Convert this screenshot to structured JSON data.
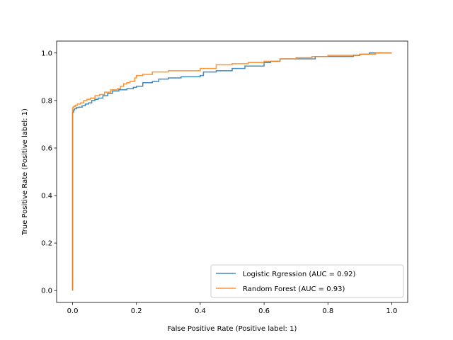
{
  "chart_data": {
    "type": "line",
    "title": "",
    "xlabel": "False Positive Rate (Positive label: 1)",
    "ylabel": "True Positive Rate (Positive label: 1)",
    "xlim": [
      -0.05,
      1.05
    ],
    "ylim": [
      -0.05,
      1.05
    ],
    "xticks": [
      0.0,
      0.2,
      0.4,
      0.6,
      0.8,
      1.0
    ],
    "yticks": [
      0.0,
      0.2,
      0.4,
      0.6,
      0.8,
      1.0
    ],
    "xtick_labels": [
      "0.0",
      "0.2",
      "0.4",
      "0.6",
      "0.8",
      "1.0"
    ],
    "ytick_labels": [
      "0.0",
      "0.2",
      "0.4",
      "0.6",
      "0.8",
      "1.0"
    ],
    "grid": false,
    "legend_position": "lower-right",
    "series": [
      {
        "name": "Logistic Rgression (AUC = 0.92)",
        "color": "#1f77b4",
        "step": true,
        "x": [
          0.0,
          0.0,
          0.003,
          0.003,
          0.006,
          0.006,
          0.012,
          0.012,
          0.02,
          0.02,
          0.03,
          0.03,
          0.04,
          0.04,
          0.05,
          0.05,
          0.06,
          0.06,
          0.07,
          0.07,
          0.08,
          0.08,
          0.095,
          0.095,
          0.11,
          0.11,
          0.125,
          0.125,
          0.145,
          0.145,
          0.17,
          0.17,
          0.19,
          0.19,
          0.2,
          0.2,
          0.22,
          0.22,
          0.25,
          0.25,
          0.27,
          0.27,
          0.3,
          0.3,
          0.34,
          0.34,
          0.4,
          0.4,
          0.41,
          0.41,
          0.45,
          0.45,
          0.5,
          0.5,
          0.54,
          0.54,
          0.6,
          0.6,
          0.62,
          0.62,
          0.65,
          0.65,
          0.73,
          0.73,
          0.76,
          0.76,
          0.8,
          0.8,
          0.85,
          0.85,
          0.88,
          0.88,
          0.9,
          0.9,
          0.93,
          0.93,
          0.97,
          0.97,
          1.0
        ],
        "y": [
          0.0,
          0.75,
          0.75,
          0.76,
          0.76,
          0.765,
          0.765,
          0.77,
          0.77,
          0.772,
          0.772,
          0.778,
          0.778,
          0.785,
          0.785,
          0.79,
          0.79,
          0.8,
          0.8,
          0.805,
          0.805,
          0.81,
          0.81,
          0.82,
          0.82,
          0.83,
          0.83,
          0.84,
          0.84,
          0.845,
          0.845,
          0.85,
          0.85,
          0.855,
          0.855,
          0.86,
          0.86,
          0.875,
          0.875,
          0.88,
          0.88,
          0.89,
          0.89,
          0.895,
          0.895,
          0.9,
          0.9,
          0.905,
          0.905,
          0.92,
          0.92,
          0.925,
          0.925,
          0.935,
          0.935,
          0.945,
          0.945,
          0.96,
          0.96,
          0.965,
          0.965,
          0.975,
          0.975,
          0.975,
          0.975,
          0.985,
          0.985,
          0.985,
          0.985,
          0.985,
          0.985,
          0.99,
          0.99,
          0.995,
          0.995,
          1.0,
          1.0,
          1.0,
          1.0
        ]
      },
      {
        "name": "Random Forest (AUC = 0.93)",
        "color": "#ff7f0e",
        "step": true,
        "x": [
          0.0,
          0.0,
          0.003,
          0.003,
          0.008,
          0.008,
          0.015,
          0.015,
          0.025,
          0.025,
          0.035,
          0.035,
          0.045,
          0.045,
          0.055,
          0.055,
          0.07,
          0.07,
          0.085,
          0.085,
          0.1,
          0.1,
          0.12,
          0.12,
          0.14,
          0.14,
          0.15,
          0.15,
          0.16,
          0.16,
          0.17,
          0.17,
          0.18,
          0.18,
          0.195,
          0.195,
          0.2,
          0.2,
          0.22,
          0.22,
          0.25,
          0.25,
          0.3,
          0.3,
          0.4,
          0.4,
          0.45,
          0.45,
          0.5,
          0.5,
          0.55,
          0.55,
          0.6,
          0.6,
          0.65,
          0.65,
          0.7,
          0.7,
          0.75,
          0.75,
          0.8,
          0.8,
          0.9,
          0.9,
          0.95,
          0.95,
          1.0
        ],
        "y": [
          0.0,
          0.77,
          0.77,
          0.775,
          0.775,
          0.78,
          0.78,
          0.785,
          0.785,
          0.79,
          0.79,
          0.8,
          0.8,
          0.805,
          0.805,
          0.81,
          0.81,
          0.82,
          0.82,
          0.825,
          0.825,
          0.835,
          0.835,
          0.845,
          0.845,
          0.85,
          0.85,
          0.86,
          0.86,
          0.87,
          0.87,
          0.875,
          0.875,
          0.88,
          0.88,
          0.895,
          0.895,
          0.905,
          0.905,
          0.91,
          0.91,
          0.92,
          0.92,
          0.925,
          0.925,
          0.935,
          0.935,
          0.95,
          0.95,
          0.955,
          0.955,
          0.96,
          0.96,
          0.965,
          0.965,
          0.975,
          0.975,
          0.98,
          0.98,
          0.985,
          0.985,
          0.99,
          0.99,
          0.995,
          0.995,
          1.0,
          1.0
        ]
      }
    ]
  }
}
